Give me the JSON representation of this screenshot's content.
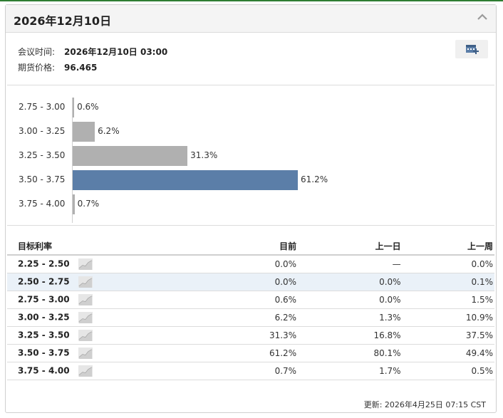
{
  "header": {
    "title": "2026年12月10日"
  },
  "meeting": {
    "time_label": "会议时间:",
    "time_value": "2026年12月10日 03:00",
    "price_label": "期货价格:",
    "price_value": "96.465"
  },
  "chart_data": {
    "type": "bar",
    "orientation": "horizontal",
    "categories": [
      "2.75 - 3.00",
      "3.00 - 3.25",
      "3.25 - 3.50",
      "3.50 - 3.75",
      "3.75 - 4.00"
    ],
    "values": [
      0.6,
      6.2,
      31.3,
      61.2,
      0.7
    ],
    "value_labels": [
      "0.6%",
      "6.2%",
      "31.3%",
      "61.2%",
      "0.7%"
    ],
    "highlight_index": 3,
    "colors": {
      "bar": "#b0b0b0",
      "highlight": "#5b7ea8"
    },
    "xlim": [
      0,
      61.2
    ]
  },
  "table": {
    "headers": [
      "目标利率",
      "目前",
      "上一日",
      "上一周"
    ],
    "rows": [
      {
        "range": "2.25 - 2.50",
        "current": "0.0%",
        "prev_day": "—",
        "prev_week": "0.0%"
      },
      {
        "range": "2.50 - 2.75",
        "current": "0.0%",
        "prev_day": "0.0%",
        "prev_week": "0.1%"
      },
      {
        "range": "2.75 - 3.00",
        "current": "0.6%",
        "prev_day": "0.0%",
        "prev_week": "1.5%"
      },
      {
        "range": "3.00 - 3.25",
        "current": "6.2%",
        "prev_day": "1.3%",
        "prev_week": "10.9%"
      },
      {
        "range": "3.25 - 3.50",
        "current": "31.3%",
        "prev_day": "16.8%",
        "prev_week": "37.5%"
      },
      {
        "range": "3.50 - 3.75",
        "current": "61.2%",
        "prev_day": "80.1%",
        "prev_week": "49.4%"
      },
      {
        "range": "3.75 - 4.00",
        "current": "0.7%",
        "prev_day": "1.7%",
        "prev_week": "0.5%"
      }
    ],
    "highlight_row": 1
  },
  "footer": {
    "updated": "更新: 2026年4月25日 07:15 CST"
  },
  "icons": {
    "collapse": "chevron-up-icon",
    "add": "add-to-calendar-icon",
    "spark": "sparkline-icon"
  }
}
